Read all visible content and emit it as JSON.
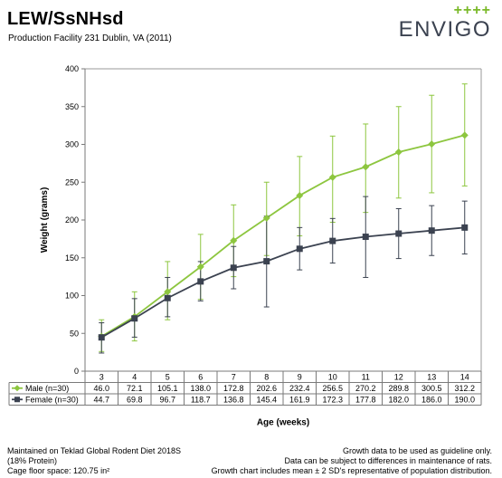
{
  "header": {
    "title": "LEW/SsNHsd",
    "subtitle": "Production Facility 231 Dublin, VA (2011)"
  },
  "logo": {
    "plus_marks": "++++",
    "brand": "ENVIGO"
  },
  "chart_data": {
    "type": "line",
    "title": "",
    "xlabel": "Age (weeks)",
    "ylabel": "Weight (grams)",
    "categories": [
      "3",
      "4",
      "5",
      "6",
      "7",
      "8",
      "9",
      "10",
      "11",
      "12",
      "13",
      "14"
    ],
    "ylim": [
      0,
      400
    ],
    "yticks": [
      "0",
      "50",
      "100",
      "150",
      "200",
      "250",
      "300",
      "350",
      "400"
    ],
    "grid": false,
    "legend": "data table",
    "series": [
      {
        "name": "Male (n=30)",
        "color": "#8dc63f",
        "marker": "diamond",
        "values": [
          46.0,
          72.1,
          105.1,
          138.0,
          172.8,
          202.6,
          232.4,
          256.5,
          270.2,
          289.8,
          300.5,
          312.2
        ],
        "labels": [
          "46.0",
          "72.1",
          "105.1",
          "138.0",
          "172.8",
          "202.6",
          "232.4",
          "256.5",
          "270.2",
          "289.8",
          "300.5",
          "312.2"
        ],
        "error_low": [
          26,
          40,
          68,
          95,
          125,
          153,
          179,
          197,
          210,
          229,
          236,
          245
        ],
        "error_high": [
          68,
          105,
          145,
          181,
          220,
          250,
          284,
          311,
          327,
          350,
          365,
          380
        ]
      },
      {
        "name": "Female (n=30)",
        "color": "#3b4250",
        "marker": "square",
        "values": [
          44.7,
          69.8,
          96.7,
          118.7,
          136.8,
          145.4,
          161.9,
          172.3,
          177.8,
          182.0,
          186.0,
          190.0
        ],
        "labels": [
          "44.7",
          "69.8",
          "96.7",
          "118.7",
          "136.8",
          "145.4",
          "161.9",
          "172.3",
          "177.8",
          "182.0",
          "186.0",
          "190.0"
        ],
        "error_low": [
          24,
          45,
          72,
          93,
          109,
          85,
          134,
          143,
          124,
          149,
          153,
          155
        ],
        "error_high": [
          64,
          96,
          124,
          145,
          165,
          205,
          190,
          202,
          231,
          215,
          219,
          225
        ]
      }
    ]
  },
  "footer": {
    "left": [
      "Maintained on Teklad Global Rodent Diet 2018S",
      "(18% Protein)",
      "Cage floor space: 120.75 in²"
    ],
    "right": [
      "Growth data to be used as guideline only.",
      "Data can be subject to differences in maintenance of rats.",
      "Growth chart includes mean ± 2 SD's representative of population distribution."
    ]
  }
}
